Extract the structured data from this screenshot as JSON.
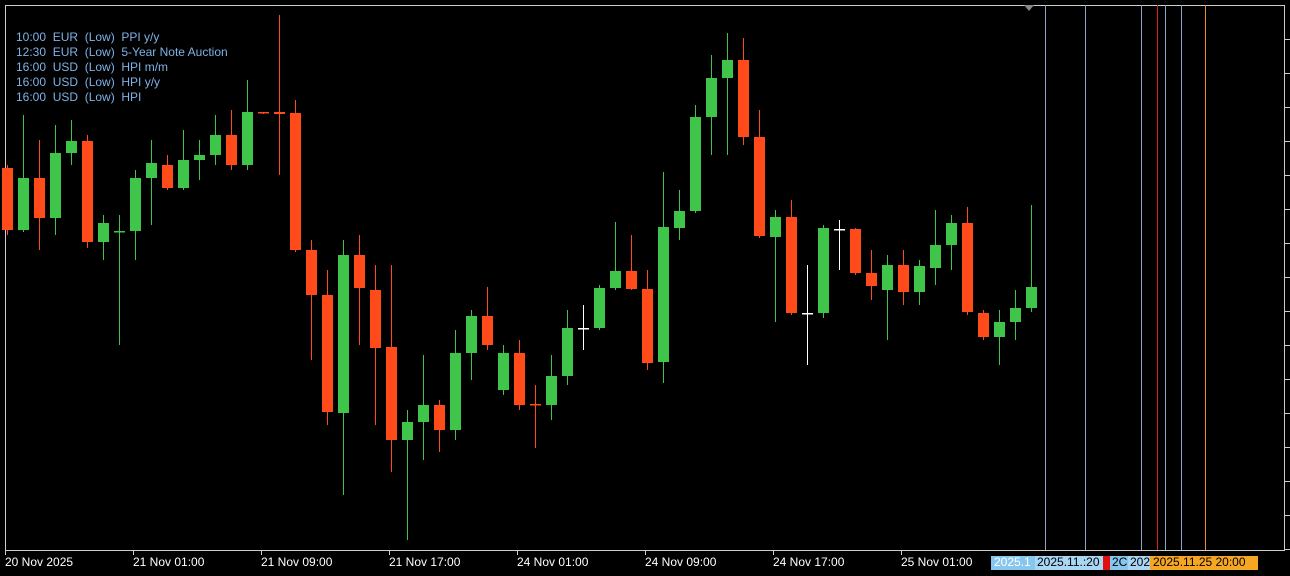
{
  "events": [
    "10:00  EUR  (Low)  PPI y/y",
    "12:30  EUR  (Low)  5-Year Note Auction",
    "16:00  USD  (Low)  HPI m/m",
    "16:00  USD  (Low)  HPI y/y",
    "16:00  USD  (Low)  HPI"
  ],
  "time_markers": [
    "2025.1",
    "2025.11.:20",
    "2C",
    "202",
    "2025.11.25 20:00"
  ],
  "chart_data": {
    "type": "candlestick",
    "categories": [
      "20 Nov 2025",
      null,
      null,
      null,
      null,
      null,
      null,
      null,
      "21 Nov 01:00",
      null,
      null,
      null,
      null,
      null,
      null,
      null,
      "21 Nov 09:00",
      null,
      null,
      null,
      null,
      null,
      null,
      null,
      "21 Nov 17:00",
      null,
      null,
      null,
      null,
      null,
      null,
      null,
      "24 Nov 01:00",
      null,
      null,
      null,
      null,
      null,
      null,
      null,
      "24 Nov 09:00",
      null,
      null,
      null,
      null,
      null,
      null,
      null,
      "24 Nov 17:00",
      null,
      null,
      null,
      null,
      null,
      null,
      null,
      "25 Nov 01:00",
      null,
      null,
      null,
      null,
      null,
      null,
      null,
      null
    ],
    "open": [
      382,
      320,
      372,
      332,
      397,
      409,
      308,
      318,
      319,
      372,
      385,
      362,
      390,
      395,
      415,
      385,
      438,
      438,
      437,
      300,
      255,
      137,
      295,
      260,
      203,
      110,
      128,
      145,
      120,
      197,
      234,
      160,
      197,
      146,
      145,
      174,
      222,
      222,
      262,
      279,
      261,
      188,
      322,
      339,
      433,
      472,
      490,
      413,
      313,
      333,
      237,
      237,
      321,
      321,
      277,
      260,
      285,
      258,
      282,
      305,
      327,
      237,
      213,
      228,
      242
    ],
    "high": [
      385,
      435,
      410,
      425,
      430,
      415,
      335,
      335,
      380,
      410,
      395,
      420,
      410,
      435,
      440,
      470,
      438,
      535,
      450,
      310,
      280,
      310,
      315,
      285,
      285,
      140,
      195,
      150,
      220,
      240,
      263,
      205,
      210,
      165,
      195,
      240,
      245,
      265,
      328,
      315,
      280,
      378,
      360,
      445,
      495,
      517,
      512,
      440,
      340,
      350,
      285,
      325,
      330,
      322,
      300,
      295,
      300,
      290,
      340,
      335,
      343,
      240,
      240,
      260,
      345
    ],
    "low": [
      315,
      318,
      300,
      315,
      385,
      302,
      290,
      205,
      290,
      325,
      360,
      360,
      370,
      385,
      380,
      380,
      436,
      375,
      298,
      190,
      125,
      55,
      205,
      125,
      78,
      10,
      90,
      98,
      110,
      170,
      200,
      155,
      140,
      102,
      130,
      165,
      200,
      220,
      260,
      260,
      180,
      167,
      310,
      337,
      395,
      395,
      405,
      312,
      228,
      235,
      185,
      232,
      280,
      275,
      250,
      210,
      245,
      245,
      265,
      280,
      235,
      210,
      185,
      210,
      238
    ],
    "close": [
      320,
      372,
      332,
      397,
      409,
      308,
      327,
      319,
      372,
      387,
      362,
      390,
      395,
      415,
      385,
      438,
      437,
      436,
      300,
      255,
      138,
      295,
      262,
      202,
      110,
      128,
      145,
      120,
      197,
      234,
      205,
      197,
      145,
      145,
      174,
      222,
      222,
      262,
      279,
      261,
      187,
      323,
      339,
      433,
      472,
      490,
      413,
      314,
      333,
      237,
      237,
      322,
      321,
      277,
      264,
      285,
      258,
      284,
      305,
      327,
      238,
      213,
      228,
      242,
      263
    ],
    "up_color": "#3fc64a",
    "down_color": "#ff4a1a",
    "doji_color": "#ffffff",
    "ylim": [
      0,
      545
    ]
  }
}
